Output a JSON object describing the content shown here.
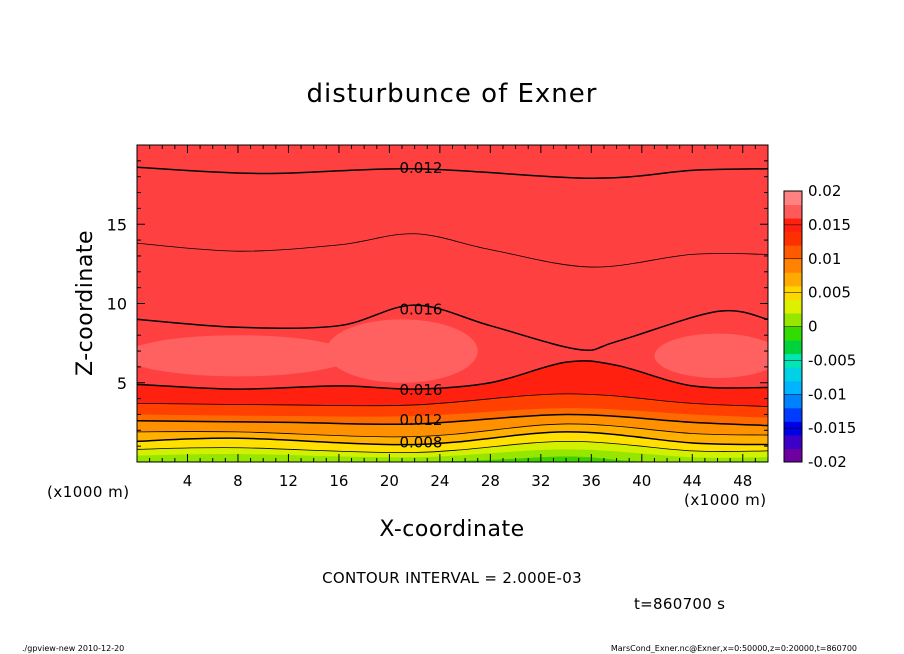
{
  "chart_data": {
    "type": "contour",
    "title": "disturbunce of Exner",
    "xlabel": "X-coordinate",
    "ylabel": "Z-coordinate",
    "x_unit": "(x1000 m)",
    "y_unit": "(x1000 m)",
    "xlim": [
      0,
      50
    ],
    "ylim": [
      0,
      20
    ],
    "x_ticks": [
      4,
      8,
      12,
      16,
      20,
      24,
      28,
      32,
      36,
      40,
      44,
      48
    ],
    "y_ticks": [
      5,
      10,
      15
    ],
    "colorbar": {
      "levels": [
        -0.02,
        -0.015,
        -0.01,
        -0.005,
        0,
        0.005,
        0.01,
        0.015,
        0.02
      ],
      "tick_labels": [
        "-0.02",
        "-0.015",
        "-0.01",
        "-0.005",
        "0",
        "0.005",
        "0.01",
        "0.015",
        "0.02"
      ],
      "colors": [
        "#6e00a0",
        "#3c00c8",
        "#0000e6",
        "#003cff",
        "#0082ff",
        "#00b4ff",
        "#00d2e6",
        "#00e6b4",
        "#00d23c",
        "#32dc00",
        "#96e600",
        "#dcf000",
        "#ffd700",
        "#ffaa00",
        "#ff8200",
        "#ff5a00",
        "#ff3000",
        "#ff2010",
        "#ff5a5a",
        "#ff8282"
      ]
    },
    "contour_labels": [
      {
        "text": "0.012",
        "x": 22.5,
        "z": 18.6
      },
      {
        "text": "0.016",
        "x": 22.5,
        "z": 9.7
      },
      {
        "text": "0.016",
        "x": 22.5,
        "z": 4.6
      },
      {
        "text": "0.012",
        "x": 22.5,
        "z": 2.7
      },
      {
        "text": "0.008",
        "x": 22.5,
        "z": 1.3
      }
    ],
    "field": {
      "upper": [
        {
          "level": 0.01,
          "color": "#ff6a00",
          "z": [
            [
              0,
              19.8
            ],
            [
              50,
              19.8
            ]
          ]
        },
        {
          "level": 0.012,
          "color": "#ff5a00",
          "z": [
            [
              0,
              18.6
            ],
            [
              10,
              18.2
            ],
            [
              22,
              18.5
            ],
            [
              36,
              17.9
            ],
            [
              44,
              18.4
            ],
            [
              50,
              18.5
            ]
          ]
        },
        {
          "level": 0.013,
          "color": "#ff4a00",
          "z": [
            [
              0,
              16.3
            ],
            [
              10,
              15.7
            ],
            [
              22,
              16.2
            ],
            [
              36,
              14.9
            ],
            [
              44,
              15.6
            ],
            [
              50,
              15.9
            ]
          ]
        },
        {
          "level": 0.014,
          "color": "#ff3000",
          "z": [
            [
              0,
              13.8
            ],
            [
              8,
              13.3
            ],
            [
              16,
              13.7
            ],
            [
              22,
              14.4
            ],
            [
              28,
              13.4
            ],
            [
              36,
              12.3
            ],
            [
              44,
              13.1
            ],
            [
              50,
              13.1
            ]
          ]
        },
        {
          "level": 0.015,
          "color": "#ff2010",
          "z": [
            [
              0,
              11.2
            ],
            [
              8,
              10.6
            ],
            [
              16,
              10.9
            ],
            [
              22,
              11.5
            ],
            [
              30,
              10.0
            ],
            [
              36,
              8.8
            ],
            [
              44,
              10.5
            ],
            [
              50,
              10.6
            ]
          ]
        },
        {
          "level": 0.016,
          "color": "#ff4040",
          "z": [
            [
              0,
              9.0
            ],
            [
              8,
              8.5
            ],
            [
              16,
              8.6
            ],
            [
              22,
              9.9
            ],
            [
              28,
              8.6
            ],
            [
              35,
              7.1
            ],
            [
              38,
              7.6
            ],
            [
              46,
              9.5
            ],
            [
              50,
              9.0
            ]
          ]
        }
      ],
      "lower": [
        {
          "level": 0.016,
          "color": "#ff2010",
          "z": [
            [
              0,
              4.9
            ],
            [
              8,
              4.6
            ],
            [
              16,
              4.8
            ],
            [
              22,
              4.6
            ],
            [
              28,
              5.0
            ],
            [
              34,
              6.3
            ],
            [
              38,
              6.1
            ],
            [
              44,
              4.8
            ],
            [
              50,
              4.7
            ]
          ]
        },
        {
          "level": 0.0145,
          "color": "#ff4000",
          "z": [
            [
              0,
              3.7
            ],
            [
              12,
              3.6
            ],
            [
              22,
              3.6
            ],
            [
              34,
              4.3
            ],
            [
              44,
              3.7
            ],
            [
              50,
              3.5
            ]
          ]
        },
        {
          "level": 0.013,
          "color": "#ff6a00",
          "z": [
            [
              0,
              3.0
            ],
            [
              12,
              2.9
            ],
            [
              22,
              2.9
            ],
            [
              34,
              3.4
            ],
            [
              44,
              3.0
            ],
            [
              50,
              2.8
            ]
          ]
        },
        {
          "level": 0.012,
          "color": "#ff9000",
          "z": [
            [
              0,
              2.6
            ],
            [
              12,
              2.5
            ],
            [
              22,
              2.4
            ],
            [
              34,
              3.0
            ],
            [
              44,
              2.5
            ],
            [
              50,
              2.3
            ]
          ]
        },
        {
          "level": 0.01,
          "color": "#ffb000",
          "z": [
            [
              0,
              1.9
            ],
            [
              8,
              1.9
            ],
            [
              22,
              1.6
            ],
            [
              34,
              2.4
            ],
            [
              44,
              1.8
            ],
            [
              50,
              1.7
            ]
          ]
        },
        {
          "level": 0.008,
          "color": "#ffe000",
          "z": [
            [
              0,
              1.3
            ],
            [
              8,
              1.5
            ],
            [
              22,
              1.1
            ],
            [
              34,
              1.9
            ],
            [
              44,
              1.2
            ],
            [
              50,
              1.1
            ]
          ]
        },
        {
          "level": 0.006,
          "color": "#d2f000",
          "z": [
            [
              0,
              0.8
            ],
            [
              8,
              0.9
            ],
            [
              22,
              0.6
            ],
            [
              34,
              1.3
            ],
            [
              44,
              0.7
            ],
            [
              50,
              0.7
            ]
          ]
        },
        {
          "level": 0.004,
          "color": "#96e600",
          "z": [
            [
              0,
              0.4
            ],
            [
              8,
              0.5
            ],
            [
              22,
              0.3
            ],
            [
              34,
              0.8
            ],
            [
              44,
              0.3
            ],
            [
              50,
              0.3
            ]
          ]
        },
        {
          "level": 0.002,
          "color": "#3cd200",
          "z": [
            [
              0,
              0.05
            ],
            [
              24,
              0.05
            ],
            [
              34,
              0.35
            ],
            [
              40,
              0.05
            ],
            [
              50,
              0.05
            ]
          ]
        }
      ],
      "core_blobs": [
        {
          "color": "#ff6060",
          "cx": 8,
          "cz": 6.7,
          "rx": 9,
          "rz": 1.3
        },
        {
          "color": "#ff6060",
          "cx": 21,
          "cz": 7.0,
          "rx": 6,
          "rz": 2.0
        },
        {
          "color": "#ff6060",
          "cx": 46,
          "cz": 6.7,
          "rx": 5,
          "rz": 1.4
        }
      ],
      "black_lines": [
        {
          "label": "0.012",
          "width": 1.5,
          "z": [
            [
              0,
              18.6
            ],
            [
              10,
              18.2
            ],
            [
              22,
              18.5
            ],
            [
              36,
              17.9
            ],
            [
              44,
              18.4
            ],
            [
              50,
              18.5
            ]
          ]
        },
        {
          "label": "",
          "width": 0.8,
          "z": [
            [
              0,
              13.8
            ],
            [
              8,
              13.3
            ],
            [
              16,
              13.7
            ],
            [
              22,
              14.4
            ],
            [
              28,
              13.4
            ],
            [
              36,
              12.3
            ],
            [
              44,
              13.1
            ],
            [
              50,
              13.1
            ]
          ]
        },
        {
          "label": "0.016",
          "width": 1.5,
          "z": [
            [
              0,
              9.0
            ],
            [
              8,
              8.5
            ],
            [
              16,
              8.6
            ],
            [
              22,
              9.9
            ],
            [
              28,
              8.6
            ],
            [
              35,
              7.1
            ],
            [
              38,
              7.6
            ],
            [
              46,
              9.5
            ],
            [
              50,
              9.0
            ]
          ]
        },
        {
          "label": "0.016",
          "width": 1.5,
          "z": [
            [
              0,
              4.9
            ],
            [
              8,
              4.6
            ],
            [
              16,
              4.8
            ],
            [
              22,
              4.6
            ],
            [
              28,
              5.0
            ],
            [
              34,
              6.3
            ],
            [
              38,
              6.1
            ],
            [
              44,
              4.8
            ],
            [
              50,
              4.7
            ]
          ]
        },
        {
          "label": "",
          "width": 0.8,
          "z": [
            [
              0,
              3.7
            ],
            [
              12,
              3.6
            ],
            [
              22,
              3.6
            ],
            [
              34,
              4.3
            ],
            [
              44,
              3.7
            ],
            [
              50,
              3.5
            ]
          ]
        },
        {
          "label": "0.012",
          "width": 1.5,
          "z": [
            [
              0,
              2.6
            ],
            [
              12,
              2.5
            ],
            [
              22,
              2.4
            ],
            [
              34,
              3.0
            ],
            [
              44,
              2.5
            ],
            [
              50,
              2.3
            ]
          ]
        },
        {
          "label": "",
          "width": 0.8,
          "z": [
            [
              0,
              1.9
            ],
            [
              8,
              1.9
            ],
            [
              22,
              1.6
            ],
            [
              34,
              2.4
            ],
            [
              44,
              1.8
            ],
            [
              50,
              1.7
            ]
          ]
        },
        {
          "label": "0.008",
          "width": 1.5,
          "z": [
            [
              0,
              1.3
            ],
            [
              8,
              1.5
            ],
            [
              22,
              1.1
            ],
            [
              34,
              1.9
            ],
            [
              44,
              1.2
            ],
            [
              50,
              1.1
            ]
          ]
        },
        {
          "label": "",
          "width": 0.8,
          "z": [
            [
              0,
              0.8
            ],
            [
              8,
              0.9
            ],
            [
              22,
              0.6
            ],
            [
              34,
              1.3
            ],
            [
              44,
              0.7
            ],
            [
              50,
              0.7
            ]
          ]
        }
      ]
    }
  },
  "annotations": {
    "contour_interval": "CONTOUR INTERVAL = 2.000E-03",
    "time": "t=860700 s",
    "footer_left": "./gpview-new  2010-12-20",
    "footer_right": "MarsCond_Exner.nc@Exner,x=0:50000,z=0:20000,t=860700"
  }
}
